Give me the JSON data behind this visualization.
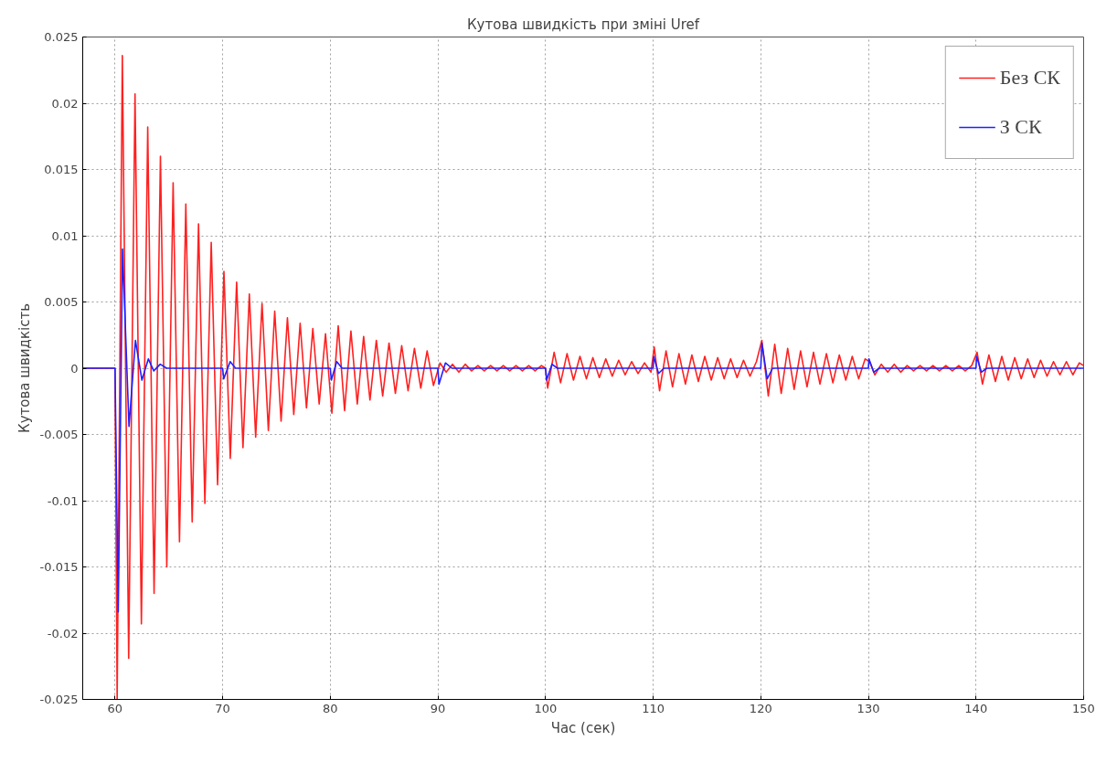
{
  "chart_data": {
    "type": "line",
    "title": "Кутова швидкість при зміні Uref",
    "xlabel": "Час (сек)",
    "ylabel": "Кутова швидкість",
    "xlim": [
      57,
      150
    ],
    "xticks": [
      60,
      70,
      80,
      90,
      100,
      110,
      120,
      130,
      140,
      150
    ],
    "ylim": [
      -0.025,
      0.025
    ],
    "yticks": [
      {
        "value": -0.025,
        "label": "-0.025"
      },
      {
        "value": -0.02,
        "label": "-0.02"
      },
      {
        "value": -0.015,
        "label": "-0.015"
      },
      {
        "value": -0.01,
        "label": "-0.01"
      },
      {
        "value": -0.005,
        "label": "-0.005"
      },
      {
        "value": 0,
        "label": "0"
      },
      {
        "value": 0.005,
        "label": "0.005"
      },
      {
        "value": 0.01,
        "label": "0.01"
      },
      {
        "value": 0.015,
        "label": "0.015"
      },
      {
        "value": 0.02,
        "label": "0.02"
      },
      {
        "value": 0.025,
        "label": "0.025"
      }
    ],
    "grid": true,
    "legend": "top right",
    "line_style": "solid",
    "marker": "none",
    "series": [
      {
        "name": "Без СК",
        "color": "#ff2020",
        "x": [
          57,
          60,
          60.2,
          60.68,
          61.27,
          61.86,
          62.45,
          63.04,
          63.63,
          64.22,
          64.81,
          65.4,
          65.99,
          66.58,
          67.17,
          67.76,
          68.35,
          68.94,
          69.53,
          70.12,
          70.71,
          71.3,
          71.89,
          72.48,
          73.07,
          73.66,
          74.25,
          74.84,
          75.43,
          76.02,
          76.61,
          77.2,
          77.79,
          78.38,
          78.97,
          79.56,
          80.15,
          80.74,
          81.33,
          81.92,
          82.51,
          83.1,
          83.69,
          84.28,
          84.87,
          85.46,
          86.05,
          86.64,
          87.23,
          87.82,
          88.41,
          89.0,
          89.59,
          90.2,
          90.77,
          91.36,
          91.95,
          92.54,
          93.13,
          93.72,
          94.31,
          94.9,
          95.49,
          96.08,
          96.67,
          97.26,
          97.85,
          98.44,
          99.03,
          99.62,
          100.0,
          100.2,
          100.8,
          101.4,
          102.0,
          102.6,
          103.2,
          103.8,
          104.4,
          105.0,
          105.6,
          106.2,
          106.8,
          107.4,
          108.0,
          108.6,
          109.2,
          109.8,
          110.1,
          110.6,
          111.2,
          111.8,
          112.4,
          113.0,
          113.6,
          114.2,
          114.8,
          115.4,
          116.0,
          116.6,
          117.2,
          117.8,
          118.4,
          119.0,
          119.6,
          120.1,
          120.7,
          121.3,
          121.9,
          122.5,
          123.1,
          123.7,
          124.3,
          124.9,
          125.5,
          126.1,
          126.7,
          127.3,
          127.9,
          128.5,
          129.1,
          129.7,
          130.1,
          130.6,
          131.2,
          131.8,
          132.4,
          133.0,
          133.6,
          134.2,
          134.8,
          135.4,
          136.0,
          136.6,
          137.2,
          137.8,
          138.4,
          139.0,
          139.6,
          140.1,
          140.6,
          141.2,
          141.8,
          142.4,
          143.0,
          143.6,
          144.2,
          144.8,
          145.4,
          146.0,
          146.6,
          147.2,
          147.8,
          148.4,
          149.0,
          149.6,
          150
        ],
        "values": [
          0,
          0,
          -0.025,
          0.0236,
          -0.0219,
          0.0207,
          -0.0193,
          0.0182,
          -0.017,
          0.016,
          -0.015,
          0.014,
          -0.0131,
          0.0124,
          -0.0116,
          0.0109,
          -0.0102,
          0.0095,
          -0.0088,
          0.0073,
          -0.0068,
          0.0065,
          -0.006,
          0.0056,
          -0.0052,
          0.0049,
          -0.0047,
          0.0043,
          -0.004,
          0.0038,
          -0.0035,
          0.0034,
          -0.003,
          0.003,
          -0.0027,
          0.0026,
          -0.0034,
          0.0032,
          -0.0032,
          0.0028,
          -0.0027,
          0.0024,
          -0.0024,
          0.0021,
          -0.0021,
          0.0019,
          -0.0019,
          0.0017,
          -0.0017,
          0.0015,
          -0.0015,
          0.0013,
          -0.0013,
          0.0004,
          -0.0003,
          0.0003,
          -0.0003,
          0.0003,
          -0.0002,
          0.0002,
          -0.0002,
          0.0002,
          -0.0002,
          0.0002,
          -0.0002,
          0.0002,
          -0.0002,
          0.0002,
          -0.0002,
          0.0002,
          0,
          -0.0015,
          0.0012,
          -0.0011,
          0.0011,
          -0.0009,
          0.0009,
          -0.0008,
          0.0008,
          -0.0007,
          0.0007,
          -0.0006,
          0.0006,
          -0.0005,
          0.0005,
          -0.0004,
          0.0004,
          -0.0003,
          0.0016,
          -0.0017,
          0.0013,
          -0.0014,
          0.0011,
          -0.0012,
          0.001,
          -0.001,
          0.0009,
          -0.0009,
          0.0008,
          -0.0008,
          0.0007,
          -0.0007,
          0.0006,
          -0.0006,
          0.0005,
          0.0021,
          -0.0021,
          0.0018,
          -0.0019,
          0.0015,
          -0.0016,
          0.0013,
          -0.0014,
          0.0012,
          -0.0012,
          0.0011,
          -0.0011,
          0.001,
          -0.0009,
          0.0009,
          -0.0008,
          0.0007,
          0.0005,
          -0.0005,
          0.0003,
          -0.0003,
          0.0003,
          -0.0003,
          0.0002,
          -0.0002,
          0.0002,
          -0.0002,
          0.0002,
          -0.0002,
          0.0002,
          -0.0002,
          0.0002,
          -0.0002,
          0.0002,
          0.0012,
          -0.0012,
          0.001,
          -0.001,
          0.0009,
          -0.0009,
          0.0008,
          -0.0008,
          0.0007,
          -0.0007,
          0.0006,
          -0.0006,
          0.0005,
          -0.0005,
          0.0005,
          -0.0005,
          0.0004,
          0.0002
        ]
      },
      {
        "name": "З СК",
        "color": "#2020ff",
        "x": [
          57,
          60,
          60.3,
          60.7,
          61.3,
          61.9,
          62.5,
          63.1,
          63.6,
          64.2,
          64.8,
          70,
          70.1,
          70.7,
          71.2,
          80,
          80.1,
          80.6,
          81.1,
          90,
          90.1,
          90.7,
          91.3,
          100,
          100.1,
          100.6,
          101.1,
          110,
          110.05,
          110.5,
          111,
          120,
          120.1,
          120.6,
          121.1,
          130,
          130.05,
          130.5,
          131,
          140,
          140.05,
          140.5,
          141,
          150
        ],
        "values": [
          0,
          0,
          -0.0184,
          0.009,
          -0.0044,
          0.0021,
          -0.0009,
          0.0007,
          -0.0002,
          0.0003,
          0,
          0,
          -0.0008,
          0.0005,
          0,
          0,
          -0.0009,
          0.0005,
          0,
          0,
          -0.0012,
          0.0004,
          0,
          0,
          -0.0009,
          0.0003,
          0,
          0,
          0.0009,
          -0.0004,
          0,
          0,
          0.0019,
          -0.0008,
          0,
          0,
          0.0007,
          -0.0003,
          0,
          0,
          0.0009,
          -0.0003,
          0,
          0
        ]
      }
    ]
  }
}
